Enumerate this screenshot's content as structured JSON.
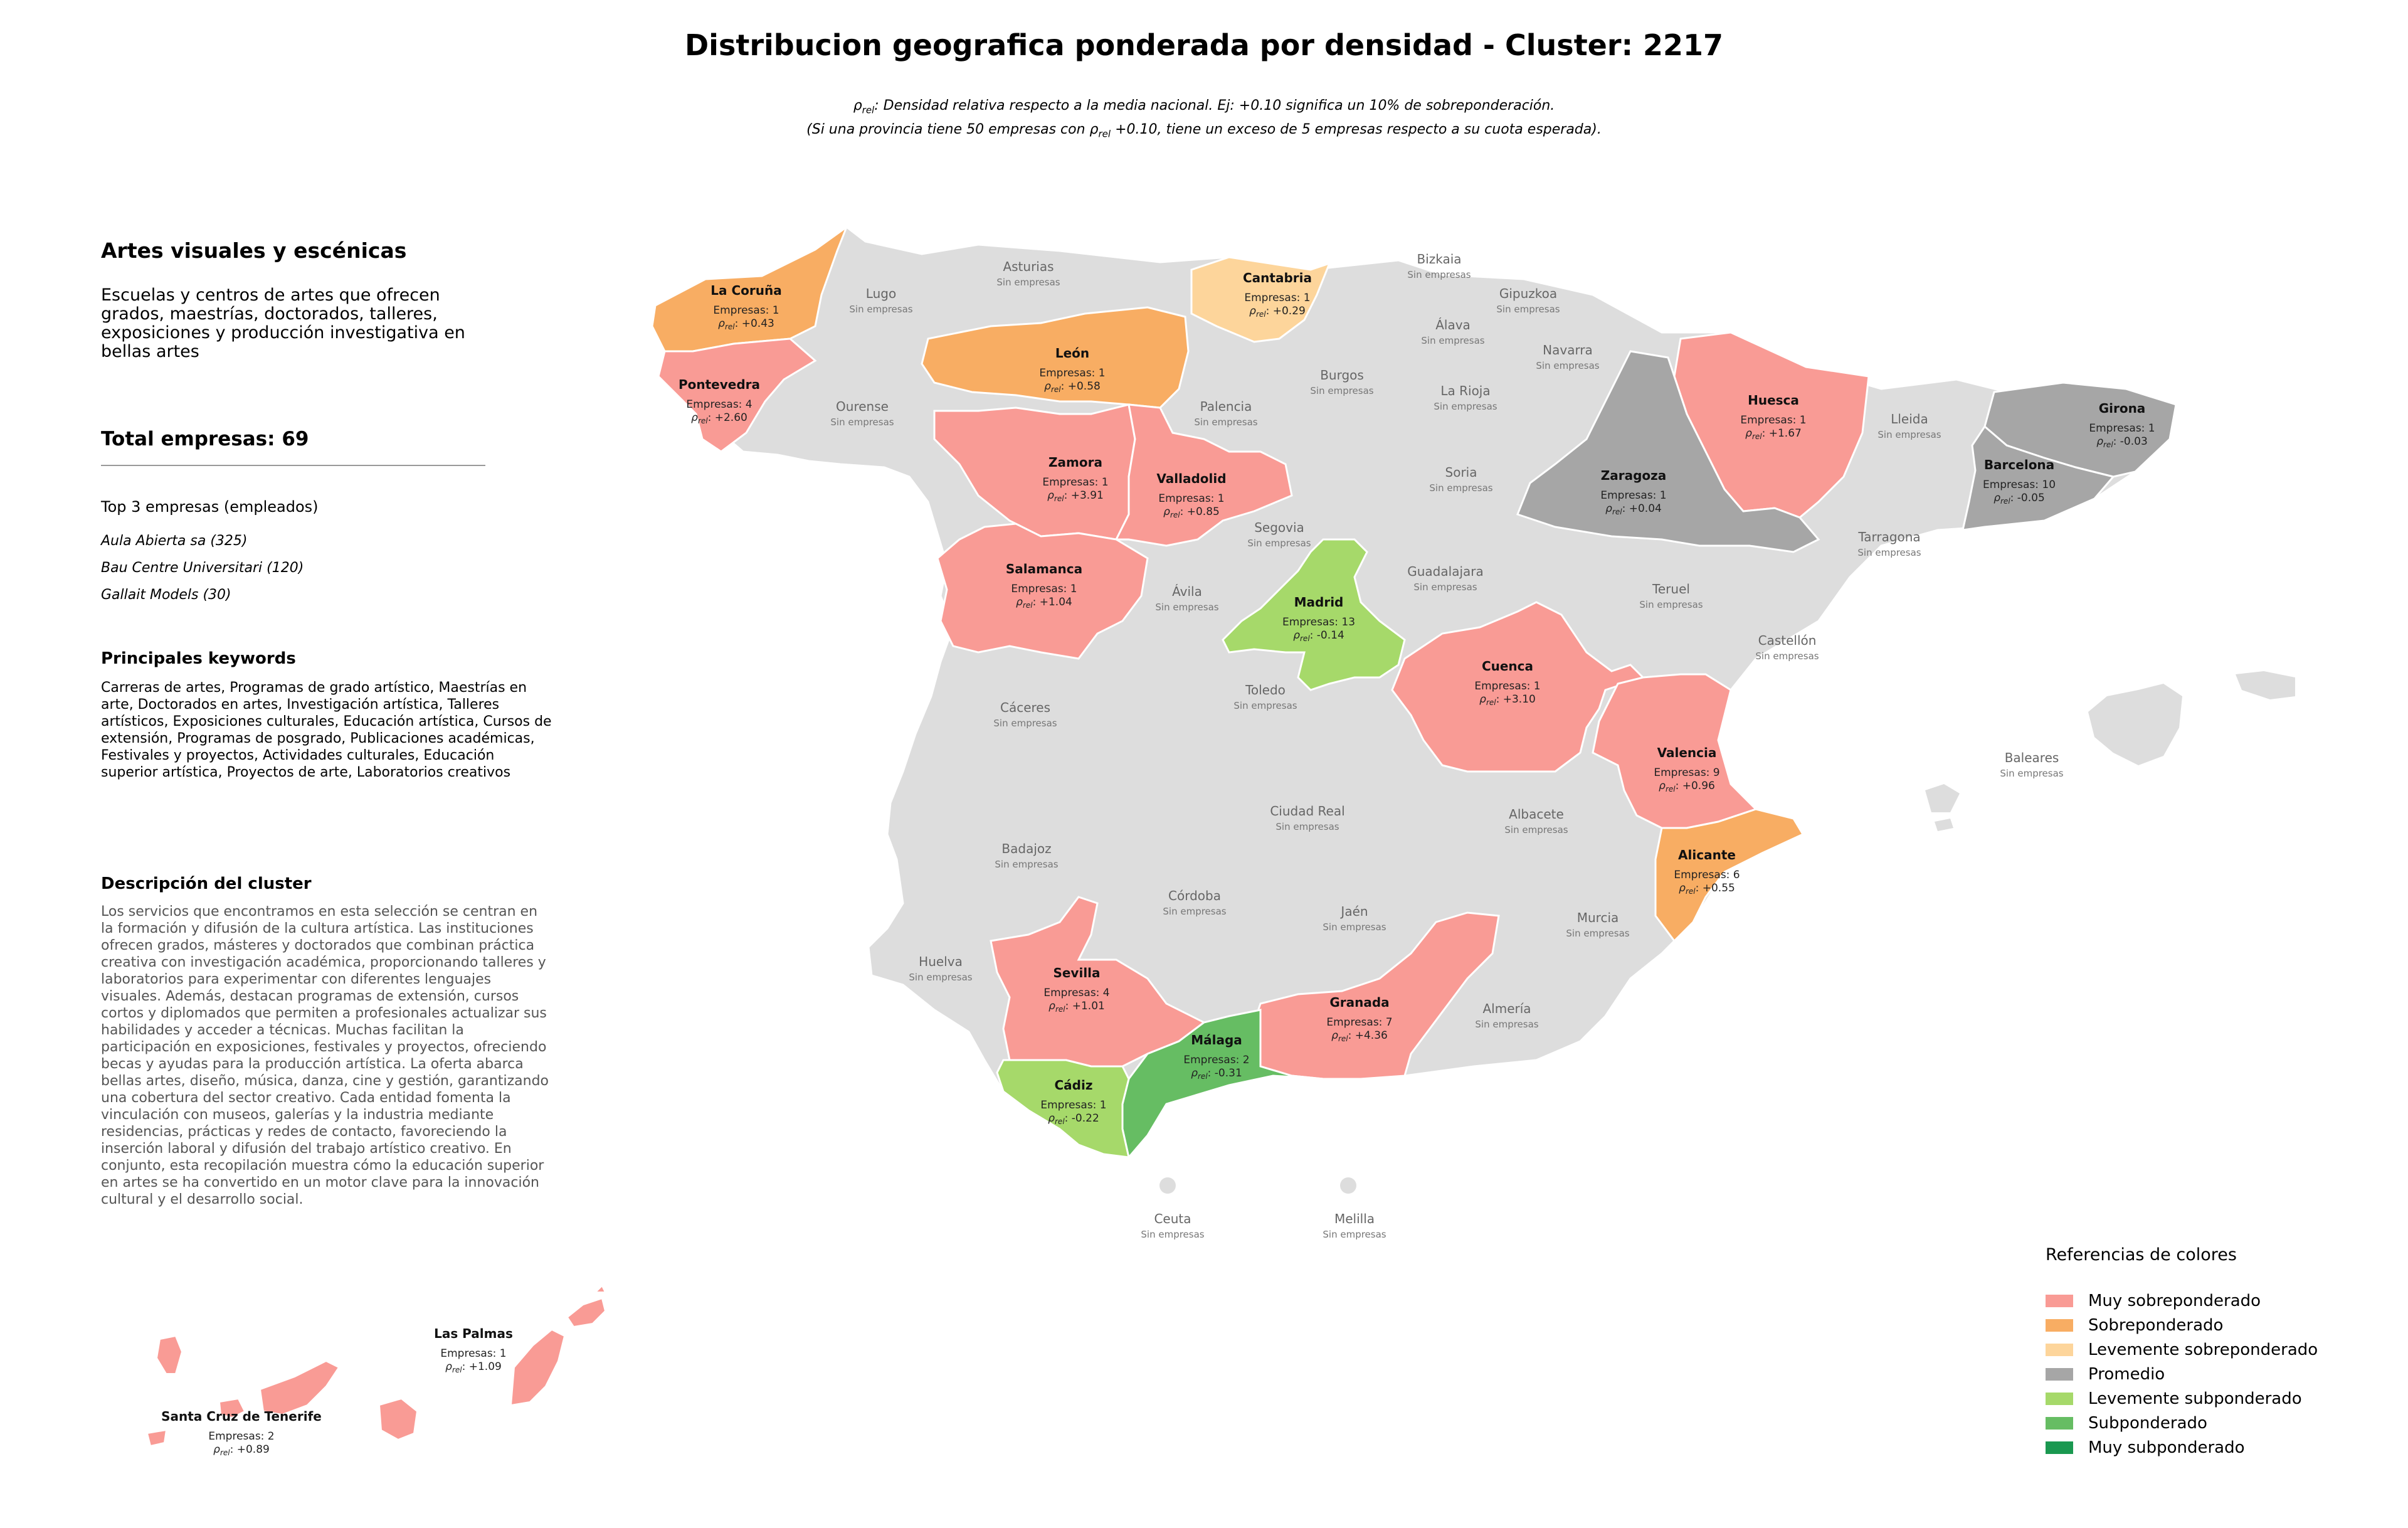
{
  "title": "Distribucion geografica ponderada por densidad - Cluster: 2217",
  "subtitle": {
    "line1": "ρrel: Densidad relativa respecto a la media nacional. Ej: +0.10 significa un 10% de sobreponderación.",
    "line2": "(Si una provincia tiene 50 empresas con ρrel +0.10, tiene un exceso de 5 empresas respecto a su cuota esperada)."
  },
  "panel": {
    "category_title": "Artes visuales y escénicas",
    "category_description": "Escuelas y centros de artes que ofrecen grados, maestrías, doctorados, talleres, exposiciones y producción investigativa en bellas artes",
    "total": "Total empresas: 69",
    "top3_title": "Top 3 empresas (empleados)",
    "top3": [
      "Aula Abierta sa (325)",
      "Bau Centre Universitari (120)",
      "Gallait Models (30)"
    ],
    "keywords_title": "Principales keywords",
    "keywords": "Carreras de artes, Programas de grado artístico, Maestrías en arte, Doctorados en artes, Investigación artística, Talleres artísticos, Exposiciones culturales, Educación artística, Cursos de extensión, Programas de posgrado, Publicaciones académicas, Festivales y proyectos, Actividades culturales, Educación superior artística, Proyectos de arte, Laboratorios creativos",
    "description_title": "Descripción del cluster",
    "description": "Los servicios que encontramos en esta selección se centran en la formación y difusión de la cultura artística. Las instituciones ofrecen grados, másteres y doctorados que combinan práctica creativa con investigación académica, proporcionando talleres y laboratorios para experimentar con diferentes lenguajes visuales. Además, destacan programas de extensión, cursos cortos y diplomados que permiten a profesionales actualizar sus habilidades y acceder a técnicas. Muchas facilitan la participación en exposiciones, festivales y proyectos, ofreciendo becas y ayudas para la producción artística. La oferta abarca bellas artes, diseño, música, danza, cine y gestión, garantizando una cobertura del sector creativo. Cada entidad fomenta la vinculación con museos, galerías y la industria mediante residencias, prácticas y redes de contacto, favoreciendo la inserción laboral y difusión del trabajo artístico creativo. En conjunto, esta recopilación muestra cómo la educación superior en artes se ha convertido en un motor clave para la innovación cultural y el desarrollo social."
  },
  "legend": {
    "title": "Referencias de colores",
    "items": [
      {
        "label": "Muy sobreponderado",
        "color": "#f99b95"
      },
      {
        "label": "Sobreponderado",
        "color": "#f8ad63"
      },
      {
        "label": "Levemente sobreponderado",
        "color": "#fdd59b"
      },
      {
        "label": "Promedio",
        "color": "#a6a6a6"
      },
      {
        "label": "Levemente subponderado",
        "color": "#a6d96a"
      },
      {
        "label": "Subponderado",
        "color": "#66bd63"
      },
      {
        "label": "Muy subponderado",
        "color": "#1a9850"
      }
    ]
  },
  "no_data_color": "#dddddd",
  "no_companies_label": "Sin empresas",
  "provinces_no_data": [
    "Asturias",
    "Lugo",
    "Ourense",
    "Bizkaia",
    "Gipuzkoa",
    "Álava",
    "Navarra",
    "Burgos",
    "La Rioja",
    "Palencia",
    "Soria",
    "Segovia",
    "Lleida",
    "Tarragona",
    "Ávila",
    "Guadalajara",
    "Teruel",
    "Castellón",
    "Cáceres",
    "Toledo",
    "Baleares",
    "Ciudad Real",
    "Albacete",
    "Badajoz",
    "Córdoba",
    "Jaén",
    "Murcia",
    "Huelva",
    "Almería",
    "Ceuta",
    "Melilla"
  ],
  "provinces_with_data": [
    {
      "name": "La Coruña",
      "empresas": "Empresas: 1",
      "rho": "+0.43",
      "color": "#f8ad63"
    },
    {
      "name": "Pontevedra",
      "empresas": "Empresas: 4",
      "rho": "+2.60",
      "color": "#f99b95"
    },
    {
      "name": "León",
      "empresas": "Empresas: 1",
      "rho": "+0.58",
      "color": "#f8ad63"
    },
    {
      "name": "Cantabria",
      "empresas": "Empresas: 1",
      "rho": "+0.29",
      "color": "#fdd59b"
    },
    {
      "name": "Huesca",
      "empresas": "Empresas: 1",
      "rho": "+1.67",
      "color": "#f99b95"
    },
    {
      "name": "Girona",
      "empresas": "Empresas: 1",
      "rho": "-0.03",
      "color": "#a6a6a6"
    },
    {
      "name": "Barcelona",
      "empresas": "Empresas: 10",
      "rho": "-0.05",
      "color": "#a6a6a6"
    },
    {
      "name": "Zaragoza",
      "empresas": "Empresas: 1",
      "rho": "+0.04",
      "color": "#a6a6a6"
    },
    {
      "name": "Zamora",
      "empresas": "Empresas: 1",
      "rho": "+3.91",
      "color": "#f99b95"
    },
    {
      "name": "Valladolid",
      "empresas": "Empresas: 1",
      "rho": "+0.85",
      "color": "#f99b95"
    },
    {
      "name": "Salamanca",
      "empresas": "Empresas: 1",
      "rho": "+1.04",
      "color": "#f99b95"
    },
    {
      "name": "Madrid",
      "empresas": "Empresas: 13",
      "rho": "-0.14",
      "color": "#a6d96a"
    },
    {
      "name": "Cuenca",
      "empresas": "Empresas: 1",
      "rho": "+3.10",
      "color": "#f99b95"
    },
    {
      "name": "Valencia",
      "empresas": "Empresas: 9",
      "rho": "+0.96",
      "color": "#f99b95"
    },
    {
      "name": "Alicante",
      "empresas": "Empresas: 6",
      "rho": "+0.55",
      "color": "#f8ad63"
    },
    {
      "name": "Sevilla",
      "empresas": "Empresas: 4",
      "rho": "+1.01",
      "color": "#f99b95"
    },
    {
      "name": "Granada",
      "empresas": "Empresas: 7",
      "rho": "+4.36",
      "color": "#f99b95"
    },
    {
      "name": "Málaga",
      "empresas": "Empresas: 2",
      "rho": "-0.31",
      "color": "#66bd63"
    },
    {
      "name": "Cádiz",
      "empresas": "Empresas: 1",
      "rho": "-0.22",
      "color": "#a6d96a"
    },
    {
      "name": "Las Palmas",
      "empresas": "Empresas: 1",
      "rho": "+1.09",
      "color": "#f99b95"
    },
    {
      "name": "Santa Cruz de Tenerife",
      "empresas": "Empresas: 2",
      "rho": "+0.89",
      "color": "#f99b95"
    }
  ]
}
